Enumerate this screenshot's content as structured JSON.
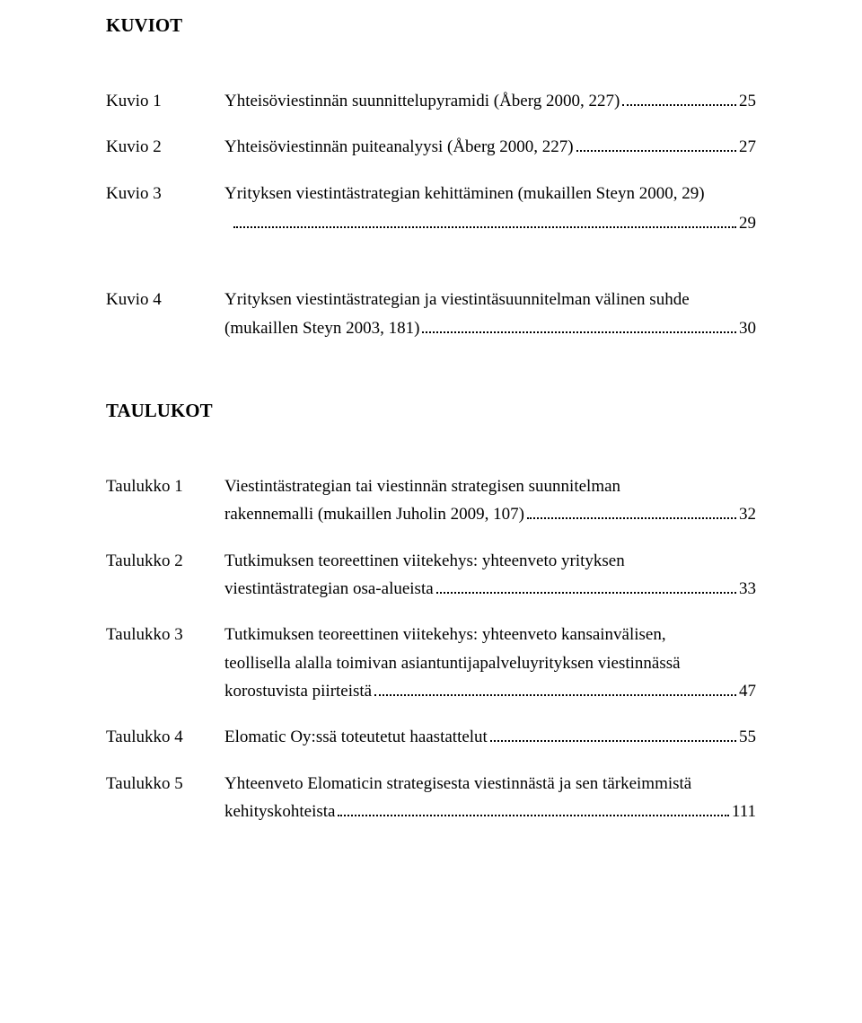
{
  "colors": {
    "text": "#000000",
    "background": "#ffffff",
    "dots": "#000000"
  },
  "typography": {
    "font_family": "Times New Roman",
    "heading_size_pt": 16,
    "body_size_pt": 14,
    "heading_weight": "bold"
  },
  "sections": {
    "kuviot": {
      "heading": "KUVIOT",
      "items": [
        {
          "label": "Kuvio 1",
          "text_full": "Yhteisöviestinnän suunnittelupyramidi (Åberg 2000, 227)",
          "page": "25"
        },
        {
          "label": "Kuvio 2",
          "text_full": "Yhteisöviestinnän puiteanalyysi (Åberg 2000, 227)",
          "page": "27"
        },
        {
          "label": "Kuvio 3",
          "line1": "Yrityksen viestintästrategian kehittäminen (mukaillen Steyn 2000, 29)",
          "page": "29"
        },
        {
          "label": "Kuvio 4",
          "line1": "Yrityksen viestintästrategian ja viestintäsuunnitelman välinen suhde",
          "leader_text": "(mukaillen Steyn 2003, 181)",
          "page": "30"
        }
      ]
    },
    "taulukot": {
      "heading": "TAULUKOT",
      "items": [
        {
          "label": "Taulukko 1",
          "line1": "Viestintästrategian tai viestinnän strategisen suunnitelman",
          "leader_text": "rakennemalli (mukaillen Juholin 2009, 107)",
          "page": "32"
        },
        {
          "label": "Taulukko 2",
          "line1": "Tutkimuksen teoreettinen viitekehys: yhteenveto yrityksen",
          "leader_text": "viestintästrategian osa-alueista",
          "page": "33"
        },
        {
          "label": "Taulukko 3",
          "line1": "Tutkimuksen teoreettinen viitekehys: yhteenveto kansainvälisen,",
          "line2": "teollisella alalla toimivan asiantuntijapalveluyrityksen viestinnässä",
          "leader_text": "korostuvista piirteistä",
          "page": "47"
        },
        {
          "label": "Taulukko 4",
          "leader_text": "Elomatic Oy:ssä toteutetut haastattelut",
          "page": "55"
        },
        {
          "label": "Taulukko 5",
          "line1": "Yhteenveto Elomaticin strategisesta viestinnästä ja sen tärkeimmistä",
          "leader_text": "kehityskohteista",
          "page": "111"
        }
      ]
    }
  }
}
